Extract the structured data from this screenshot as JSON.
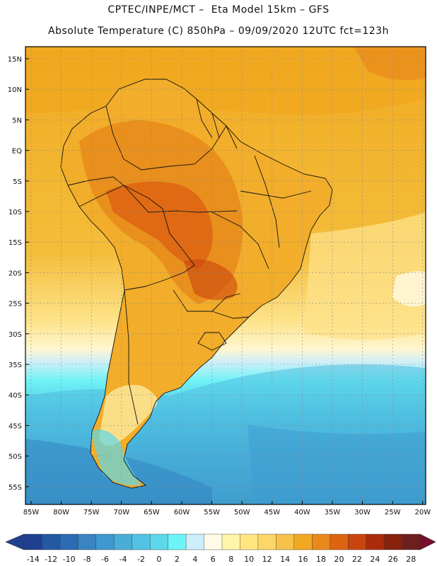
{
  "header": {
    "line1": "CPTEC/INPE/MCT –  Eta Model 15km – GFS",
    "line2": "Absolute Temperature (C) 850hPa – 09/09/2020 12UTC fct=123h"
  },
  "axes": {
    "lat_labels": [
      "15N",
      "10N",
      "5N",
      "EQ",
      "5S",
      "10S",
      "15S",
      "20S",
      "25S",
      "30S",
      "35S",
      "40S",
      "45S",
      "50S",
      "55S"
    ],
    "lon_labels": [
      "85W",
      "80W",
      "75W",
      "70W",
      "65W",
      "60W",
      "55W",
      "50W",
      "45W",
      "40W",
      "35W",
      "30W",
      "25W",
      "20W"
    ]
  },
  "colorbar": {
    "labels": [
      "-14",
      "-12",
      "-10",
      "-8",
      "-6",
      "-4",
      "-2",
      "0",
      "2",
      "4",
      "6",
      "8",
      "10",
      "12",
      "14",
      "16",
      "18",
      "20",
      "22",
      "24",
      "26",
      "28"
    ],
    "colors": [
      "#1f3f8f",
      "#2458a3",
      "#2b6bb2",
      "#3a84c2",
      "#3f98cf",
      "#48aed8",
      "#52c3e2",
      "#5dd7ea",
      "#6cf4f6",
      "#cbeefa",
      "#fffbe8",
      "#fff5a8",
      "#ffe680",
      "#fbd768",
      "#f6c24a",
      "#f1a923",
      "#e8891b",
      "#de6412",
      "#c9450f",
      "#aa2c0c",
      "#87210b",
      "#6e1e1d"
    ]
  }
}
